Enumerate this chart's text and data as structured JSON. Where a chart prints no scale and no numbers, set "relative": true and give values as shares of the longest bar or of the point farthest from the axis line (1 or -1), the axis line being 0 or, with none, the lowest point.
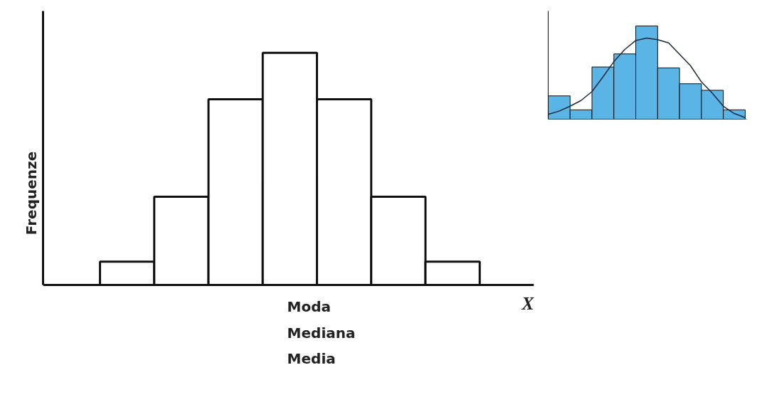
{
  "chart_data": [
    {
      "type": "bar",
      "relative": true,
      "categories": [
        null,
        null,
        null,
        null,
        null,
        null,
        null
      ],
      "values": [
        0.1,
        0.38,
        0.8,
        1,
        0.8,
        0.38,
        0.1
      ],
      "color": "#ffffff",
      "xlabel": "X",
      "ylabel": "Frequenze",
      "annotations": [
        "Moda",
        "Mediana",
        "Media"
      ]
    },
    {
      "type": "bar",
      "relative": true,
      "categories": [
        null,
        null,
        null,
        null,
        null,
        null,
        null,
        null,
        null
      ],
      "values": [
        0.25,
        0.1,
        0.56,
        0.7,
        1,
        0.55,
        0.38,
        0.31,
        0.1
      ],
      "color": "#5ab4e6"
    },
    {
      "type": "line",
      "relative": true,
      "categories": [
        null,
        null,
        null,
        null,
        null,
        null,
        null,
        null,
        null,
        null,
        null,
        null,
        null,
        null,
        null,
        null,
        null,
        null,
        null
      ],
      "values": [
        0.06,
        0.1,
        0.16,
        0.23,
        0.34,
        0.52,
        0.71,
        0.86,
        0.97,
        1,
        0.98,
        0.94,
        0.8,
        0.66,
        0.46,
        0.32,
        0.16,
        0.07,
        0.02
      ],
      "color": "#1a2a3a"
    }
  ]
}
